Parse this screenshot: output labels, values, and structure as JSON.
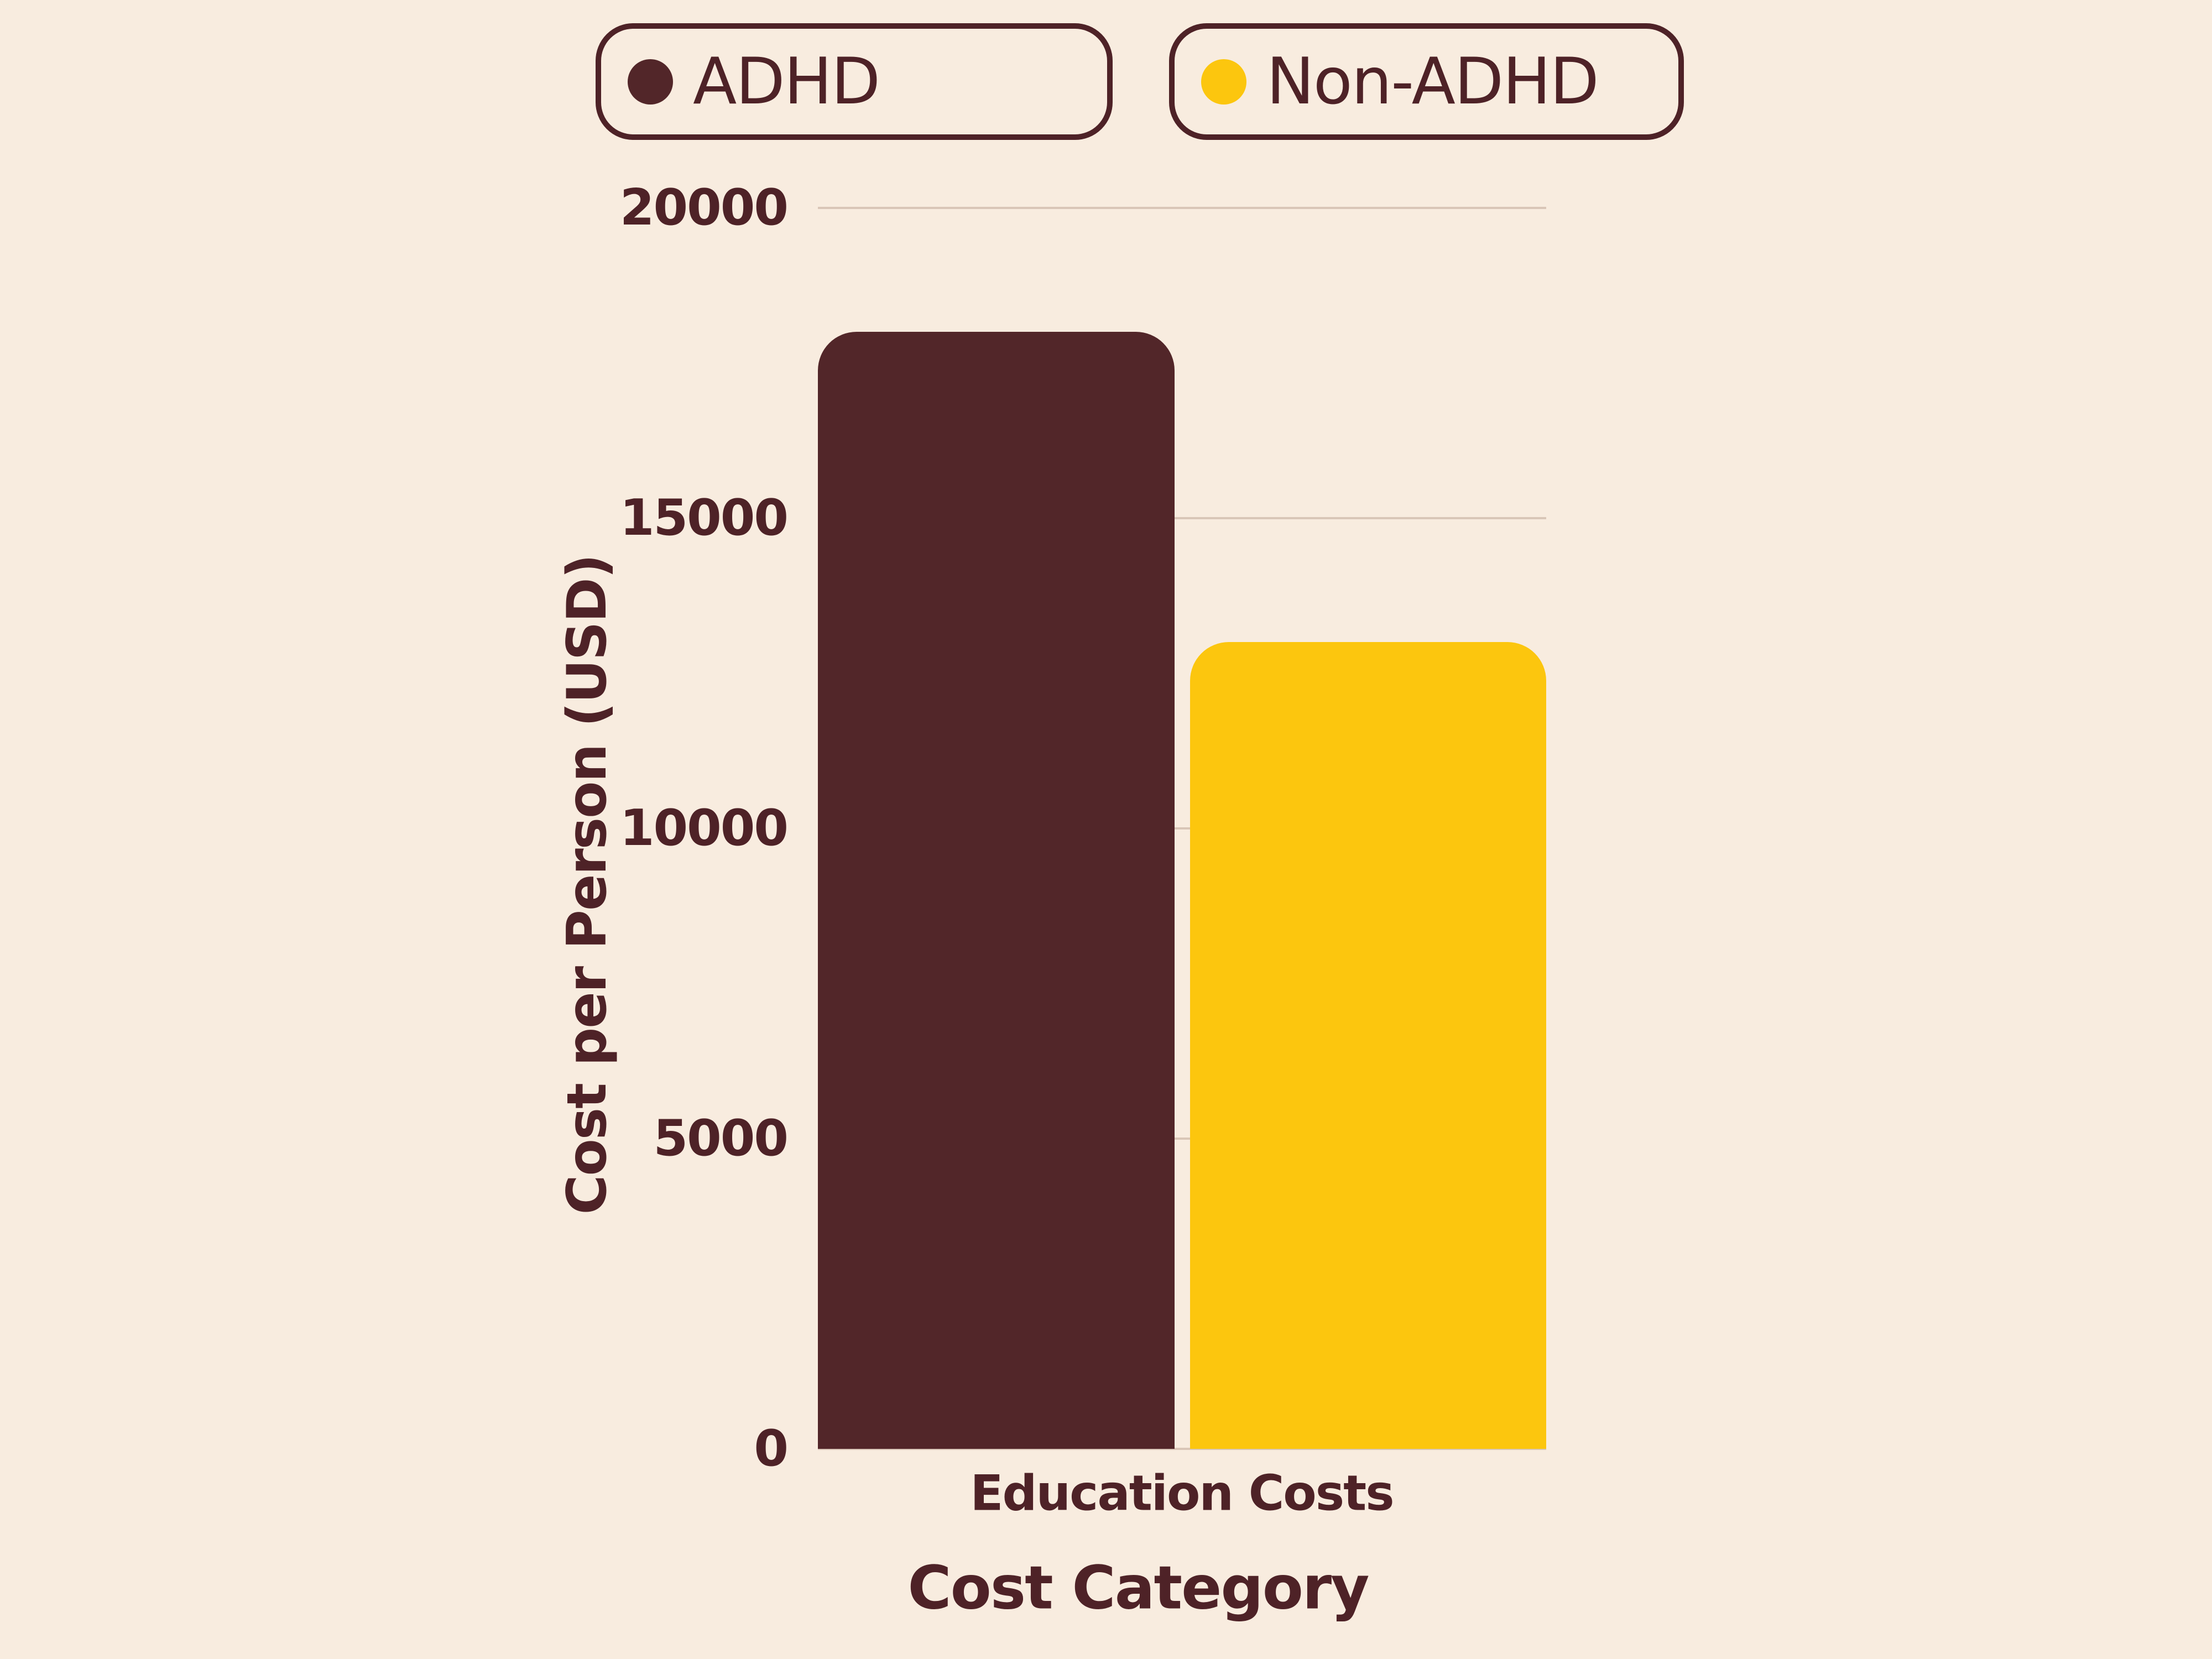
{
  "chart_data": {
    "type": "bar",
    "title": "",
    "categories": [
      "Education Costs"
    ],
    "series": [
      {
        "name": "ADHD",
        "values": [
          18000
        ],
        "color": "#522629"
      },
      {
        "name": "Non-ADHD",
        "values": [
          13000
        ],
        "color": "#fcc60e"
      }
    ],
    "xlabel": "Cost Category",
    "ylabel": "Cost per Person (USD)",
    "ylim": [
      0,
      20000
    ],
    "y_ticks": [
      0,
      5000,
      10000,
      15000,
      20000
    ],
    "grid": "horizontal",
    "legend_position": "top"
  },
  "legend": {
    "items": [
      {
        "label": "ADHD",
        "color": "#522629"
      },
      {
        "label": "Non-ADHD",
        "color": "#fcc60e"
      }
    ]
  },
  "colors": {
    "background": "#f8ecdf",
    "ink": "#4e2227",
    "gridline": "#d9c6b7"
  }
}
